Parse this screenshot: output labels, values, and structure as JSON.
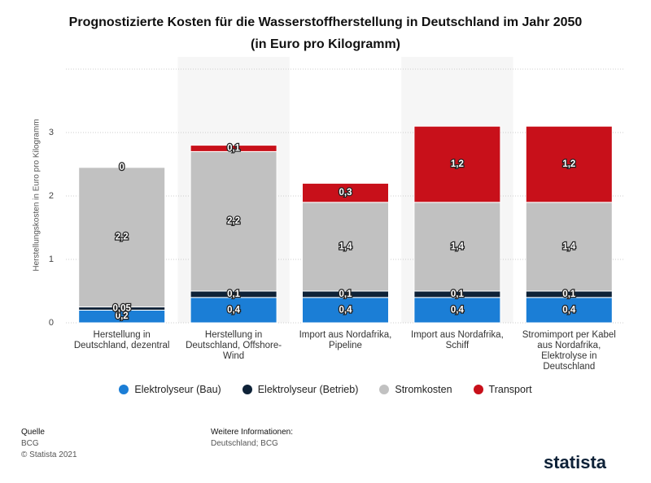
{
  "chart_data": {
    "type": "stacked-bar",
    "title": "Prognostizierte Kosten für die Wasserstoffherstellung in Deutschland im Jahr 2050 (in Euro pro Kilogramm)",
    "y_label": "Herstellungskosten in Euro pro Kilogramm",
    "categories": [
      "Herstellung in Deutschland, dezentral",
      "Herstellung in Deutschland, Offshore-Wind",
      "Import aus Nordafrika, Pipeline",
      "Import aus Nordafrika, Schiff",
      "Stromimport per Kabel aus Nordafrika, Elektrolyse in Deutschland"
    ],
    "series": [
      {
        "name": "Elektrolyseur (Bau)",
        "color": "#1b7ed6",
        "values": [
          0.2,
          0.4,
          0.4,
          0.4,
          0.4
        ],
        "value_labels": [
          "0,2",
          "0,4",
          "0,4",
          "0,4",
          "0,4"
        ]
      },
      {
        "name": "Elektrolyseur (Betrieb)",
        "color": "#0e2238",
        "values": [
          0.05,
          0.1,
          0.1,
          0.1,
          0.1
        ],
        "value_labels": [
          "0,05",
          "0,1",
          "0,1",
          "0,1",
          "0,1"
        ]
      },
      {
        "name": "Stromkosten",
        "color": "#c1c1c1",
        "values": [
          2.2,
          2.2,
          1.4,
          1.4,
          1.4
        ],
        "value_labels": [
          "2,2",
          "2,2",
          "1,4",
          "1,4",
          "1,4"
        ]
      },
      {
        "name": "Transport",
        "color": "#c8101a",
        "values": [
          0,
          0.1,
          0.3,
          1.2,
          1.2
        ],
        "value_labels": [
          "0",
          "0,1",
          "0,3",
          "1,2",
          "1,2"
        ]
      }
    ],
    "ylim": [
      0,
      4
    ],
    "yticks": [
      0,
      1,
      2,
      3
    ],
    "grid": true
  },
  "footer": {
    "source_label": "Quelle",
    "source": "BCG",
    "copyright": "© Statista 2021",
    "info_label": "Weitere Informationen:",
    "info": "Deutschland; BCG",
    "brand": "statista"
  }
}
